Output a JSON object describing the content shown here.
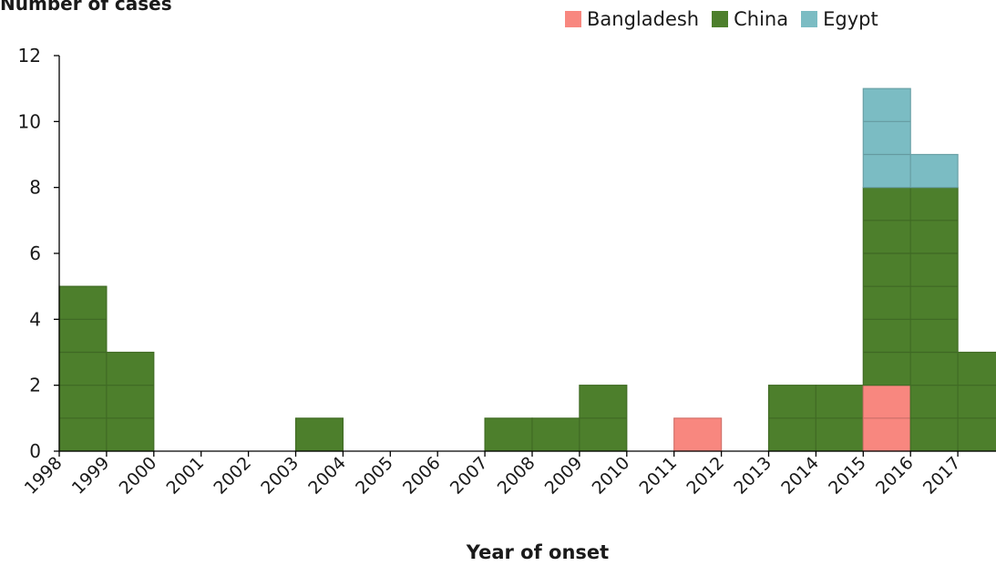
{
  "chart_data": {
    "type": "bar",
    "stacked": true,
    "title": "",
    "ylabel": "Number of cases",
    "xlabel": "Year of onset",
    "ylim": [
      0,
      12
    ],
    "yticks": [
      0,
      2,
      4,
      6,
      8,
      10,
      12
    ],
    "categories": [
      "1998",
      "1999",
      "2000",
      "2001",
      "2002",
      "2003",
      "2004",
      "2005",
      "2006",
      "2007",
      "2008",
      "2009",
      "2010",
      "2011",
      "2012",
      "2013",
      "2014",
      "2015",
      "2016",
      "2017"
    ],
    "series": [
      {
        "name": "Bangladesh",
        "color": "#f8877f",
        "values": [
          0,
          0,
          0,
          0,
          0,
          0,
          0,
          0,
          0,
          0,
          0,
          0,
          0,
          1,
          0,
          0,
          0,
          2,
          0,
          0
        ]
      },
      {
        "name": "China",
        "color": "#4d7f2c",
        "values": [
          5,
          3,
          0,
          0,
          0,
          1,
          0,
          0,
          0,
          1,
          1,
          2,
          0,
          0,
          0,
          2,
          2,
          6,
          8,
          3
        ]
      },
      {
        "name": "Egypt",
        "color": "#7bbcc3",
        "values": [
          0,
          0,
          0,
          0,
          0,
          0,
          0,
          0,
          0,
          0,
          0,
          0,
          0,
          0,
          0,
          0,
          0,
          3,
          1,
          0
        ]
      }
    ],
    "legend_position": "top-right",
    "grid": false
  }
}
